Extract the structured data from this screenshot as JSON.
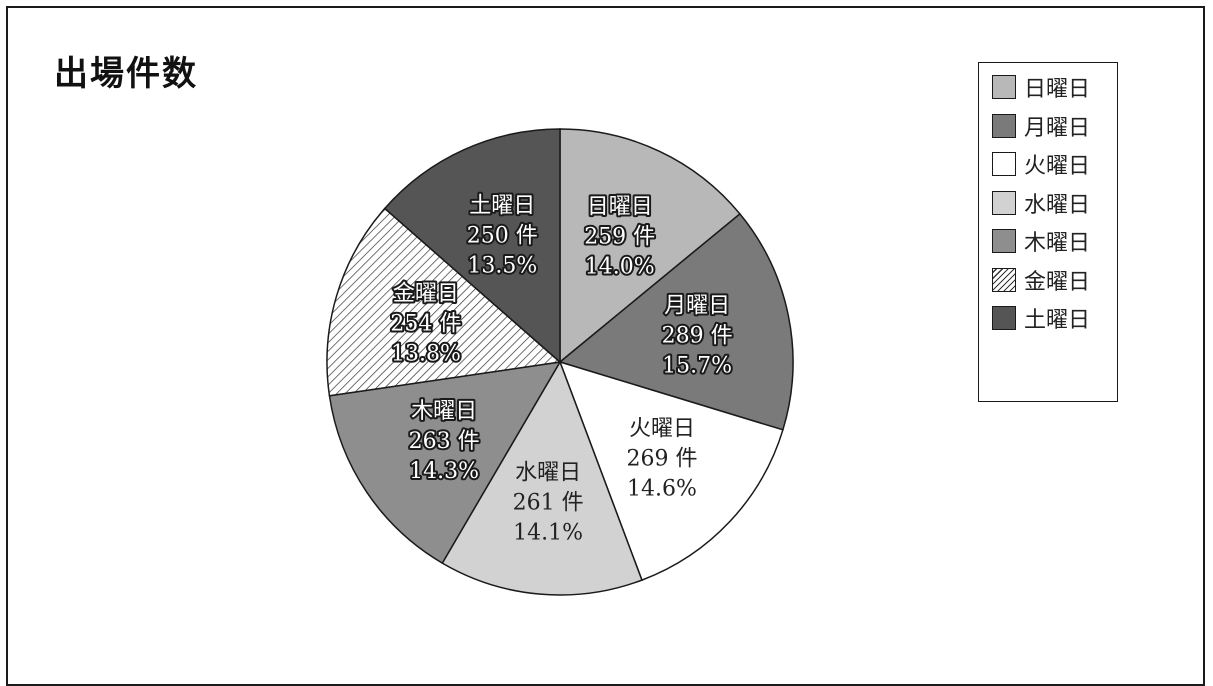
{
  "chart_data": {
    "type": "pie",
    "title": "出場件数",
    "legend_position": "top-right",
    "slices": [
      {
        "label": "日曜日",
        "value": 259,
        "count_text": "259 件",
        "percent_text": "14.0%",
        "color": "#b8b8b8",
        "style": "outlined"
      },
      {
        "label": "月曜日",
        "value": 289,
        "count_text": "289 件",
        "percent_text": "15.7%",
        "color": "#7a7a7a",
        "style": "outlined"
      },
      {
        "label": "火曜日",
        "value": 269,
        "count_text": "269 件",
        "percent_text": "14.6%",
        "color": "#ffffff",
        "style": "plain"
      },
      {
        "label": "水曜日",
        "value": 261,
        "count_text": "261 件",
        "percent_text": "14.1%",
        "color": "#d2d2d2",
        "style": "plain"
      },
      {
        "label": "木曜日",
        "value": 263,
        "count_text": "263 件",
        "percent_text": "14.3%",
        "color": "#8e8e8e",
        "style": "outlined"
      },
      {
        "label": "金曜日",
        "value": 254,
        "count_text": "254 件",
        "percent_text": "13.8%",
        "color": "hatch",
        "style": "outlined"
      },
      {
        "label": "土曜日",
        "value": 250,
        "count_text": "250 件",
        "percent_text": "13.5%",
        "color": "#555555",
        "style": "outlined"
      }
    ]
  }
}
